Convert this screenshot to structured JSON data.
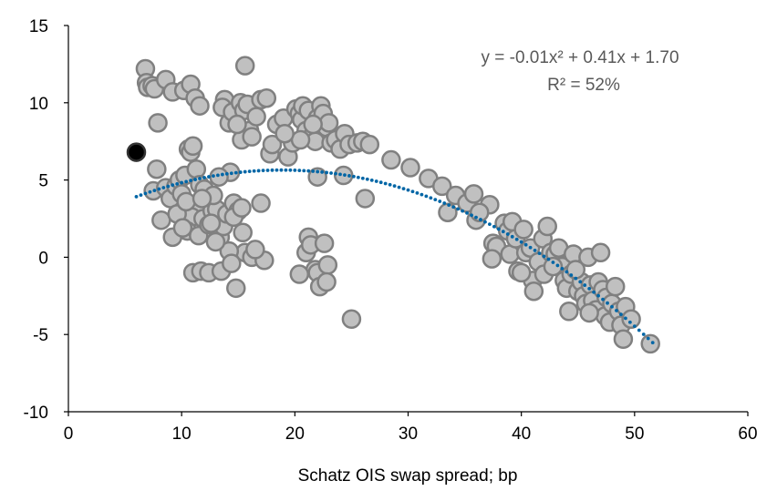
{
  "chart_data": {
    "type": "scatter",
    "title": "",
    "xlabel": "Schatz OIS swap spread; bp",
    "ylabel": "",
    "xlim": [
      0,
      60
    ],
    "ylim": [
      -10,
      15
    ],
    "xticks": [
      "0",
      "10",
      "20",
      "30",
      "40",
      "50",
      "60"
    ],
    "yticks": [
      "15",
      "10",
      "5",
      "0",
      "-5",
      "-10"
    ],
    "grid": false,
    "colors": {
      "marker_fill": "#c0c0c0",
      "marker_stroke": "#808080",
      "highlight": "#000000",
      "trendline": "#0066a6"
    },
    "trendline": {
      "type": "polynomial-2",
      "equation": "y = -0.01x² + 0.41x + 1.70",
      "r2_label": "R² = 52%"
    },
    "highlight_point": [
      6.0,
      6.8
    ],
    "points": [
      [
        6.8,
        12.2
      ],
      [
        6.9,
        11.3
      ],
      [
        7.0,
        11.0
      ],
      [
        7.4,
        11.1
      ],
      [
        7.6,
        10.9
      ],
      [
        8.6,
        11.5
      ],
      [
        9.2,
        10.7
      ],
      [
        10.2,
        10.8
      ],
      [
        10.8,
        11.2
      ],
      [
        11.2,
        10.3
      ],
      [
        11.6,
        9.8
      ],
      [
        7.9,
        8.7
      ],
      [
        13.8,
        10.2
      ],
      [
        13.6,
        9.7
      ],
      [
        14.2,
        8.7
      ],
      [
        14.5,
        9.4
      ],
      [
        15.2,
        10.0
      ],
      [
        15.5,
        9.5
      ],
      [
        15.8,
        9.9
      ],
      [
        16.0,
        8.2
      ],
      [
        15.3,
        7.6
      ],
      [
        16.2,
        7.8
      ],
      [
        16.6,
        9.1
      ],
      [
        17.0,
        10.2
      ],
      [
        17.5,
        10.3
      ],
      [
        15.6,
        12.4
      ],
      [
        17.8,
        6.7
      ],
      [
        18.0,
        7.3
      ],
      [
        18.4,
        8.6
      ],
      [
        19.0,
        9.0
      ],
      [
        19.4,
        6.5
      ],
      [
        19.8,
        7.4
      ],
      [
        20.1,
        9.6
      ],
      [
        20.4,
        9.3
      ],
      [
        20.6,
        8.9
      ],
      [
        20.7,
        9.8
      ],
      [
        21.2,
        9.5
      ],
      [
        21.0,
        8.2
      ],
      [
        21.5,
        7.8
      ],
      [
        21.8,
        7.5
      ],
      [
        22.0,
        9.0
      ],
      [
        22.3,
        9.8
      ],
      [
        22.5,
        9.3
      ],
      [
        22.8,
        8.4
      ],
      [
        23.0,
        8.7
      ],
      [
        23.2,
        7.4
      ],
      [
        23.6,
        7.6
      ],
      [
        24.0,
        7.0
      ],
      [
        24.4,
        8.0
      ],
      [
        24.8,
        7.3
      ],
      [
        25.5,
        7.4
      ],
      [
        26.0,
        7.5
      ],
      [
        26.6,
        7.3
      ],
      [
        22.0,
        5.2
      ],
      [
        24.3,
        5.3
      ],
      [
        26.2,
        3.8
      ],
      [
        20.5,
        7.6
      ],
      [
        19.1,
        8.0
      ],
      [
        21.6,
        8.6
      ],
      [
        14.9,
        8.6
      ],
      [
        7.8,
        5.7
      ],
      [
        7.5,
        4.3
      ],
      [
        8.2,
        2.4
      ],
      [
        8.6,
        4.5
      ],
      [
        9.0,
        3.8
      ],
      [
        9.2,
        1.3
      ],
      [
        9.5,
        4.6
      ],
      [
        9.8,
        5.0
      ],
      [
        10.0,
        4.1
      ],
      [
        10.3,
        5.3
      ],
      [
        10.6,
        7.0
      ],
      [
        10.8,
        6.8
      ],
      [
        11.0,
        7.2
      ],
      [
        11.3,
        5.7
      ],
      [
        11.6,
        4.7
      ],
      [
        11.2,
        3.2
      ],
      [
        10.9,
        2.6
      ],
      [
        10.5,
        1.7
      ],
      [
        11.5,
        1.4
      ],
      [
        11.9,
        2.5
      ],
      [
        12.2,
        3.8
      ],
      [
        12.4,
        2.1
      ],
      [
        12.7,
        3.0
      ],
      [
        13.1,
        3.1
      ],
      [
        13.4,
        1.3
      ],
      [
        13.7,
        2.0
      ],
      [
        14.0,
        2.8
      ],
      [
        14.3,
        5.5
      ],
      [
        14.6,
        3.5
      ],
      [
        15.0,
        3.0
      ],
      [
        15.4,
        1.6
      ],
      [
        15.6,
        0.3
      ],
      [
        14.2,
        0.4
      ],
      [
        13.0,
        1.0
      ],
      [
        16.2,
        0.0
      ],
      [
        17.0,
        3.5
      ],
      [
        17.3,
        -0.2
      ],
      [
        11.0,
        -1.0
      ],
      [
        11.7,
        -0.9
      ],
      [
        12.4,
        -1.0
      ],
      [
        13.5,
        -0.9
      ],
      [
        14.4,
        -0.4
      ],
      [
        14.8,
        -2.0
      ],
      [
        9.6,
        2.8
      ],
      [
        10.1,
        1.9
      ],
      [
        12.0,
        4.4
      ],
      [
        12.8,
        4.0
      ],
      [
        13.3,
        5.2
      ],
      [
        14.6,
        2.6
      ],
      [
        15.3,
        3.2
      ],
      [
        16.5,
        0.5
      ],
      [
        10.4,
        3.6
      ],
      [
        11.8,
        3.8
      ],
      [
        12.6,
        2.2
      ],
      [
        21.0,
        0.3
      ],
      [
        21.2,
        1.3
      ],
      [
        21.4,
        0.8
      ],
      [
        21.8,
        -0.8
      ],
      [
        22.0,
        -1.0
      ],
      [
        22.2,
        -1.9
      ],
      [
        22.6,
        0.9
      ],
      [
        22.9,
        -0.5
      ],
      [
        22.8,
        -1.6
      ],
      [
        20.4,
        -1.1
      ],
      [
        25.0,
        -4.0
      ],
      [
        28.5,
        6.3
      ],
      [
        30.2,
        5.8
      ],
      [
        31.8,
        5.1
      ],
      [
        33.0,
        4.6
      ],
      [
        34.2,
        4.0
      ],
      [
        33.5,
        2.9
      ],
      [
        35.2,
        3.5
      ],
      [
        35.8,
        4.1
      ],
      [
        36.0,
        2.4
      ],
      [
        37.2,
        3.4
      ],
      [
        37.5,
        0.9
      ],
      [
        37.8,
        0.7
      ],
      [
        37.4,
        -0.1
      ],
      [
        38.5,
        2.2
      ],
      [
        38.8,
        1.7
      ],
      [
        39.2,
        2.3
      ],
      [
        39.0,
        0.2
      ],
      [
        39.5,
        1.2
      ],
      [
        39.7,
        -0.9
      ],
      [
        40.2,
        1.8
      ],
      [
        40.4,
        0.3
      ],
      [
        40.8,
        0.6
      ],
      [
        41.0,
        -1.5
      ],
      [
        41.1,
        -2.2
      ],
      [
        41.5,
        -0.3
      ],
      [
        41.9,
        1.2
      ],
      [
        42.0,
        -1.1
      ],
      [
        42.3,
        2.0
      ],
      [
        42.6,
        0.3
      ],
      [
        43.0,
        0.2
      ],
      [
        43.3,
        0.6
      ],
      [
        43.6,
        -0.6
      ],
      [
        43.8,
        -1.5
      ],
      [
        44.0,
        -2.0
      ],
      [
        44.2,
        -3.5
      ],
      [
        44.4,
        -1.1
      ],
      [
        44.6,
        0.2
      ],
      [
        45.0,
        -2.2
      ],
      [
        45.3,
        -1.6
      ],
      [
        45.5,
        -2.5
      ],
      [
        45.7,
        -3.0
      ],
      [
        45.9,
        0.0
      ],
      [
        46.1,
        -1.8
      ],
      [
        46.3,
        -2.8
      ],
      [
        46.6,
        -3.4
      ],
      [
        46.8,
        -1.6
      ],
      [
        47.0,
        0.3
      ],
      [
        47.2,
        -2.1
      ],
      [
        47.4,
        -3.8
      ],
      [
        47.5,
        -2.6
      ],
      [
        47.8,
        -4.2
      ],
      [
        48.0,
        -3.0
      ],
      [
        48.3,
        -1.9
      ],
      [
        48.6,
        -3.5
      ],
      [
        48.8,
        -4.4
      ],
      [
        49.0,
        -5.3
      ],
      [
        49.2,
        -3.2
      ],
      [
        49.7,
        -4.0
      ],
      [
        51.4,
        -5.6
      ],
      [
        46.0,
        -3.6
      ],
      [
        44.8,
        -0.8
      ],
      [
        42.8,
        -0.6
      ],
      [
        40.0,
        -1.0
      ],
      [
        36.3,
        2.9
      ]
    ]
  }
}
